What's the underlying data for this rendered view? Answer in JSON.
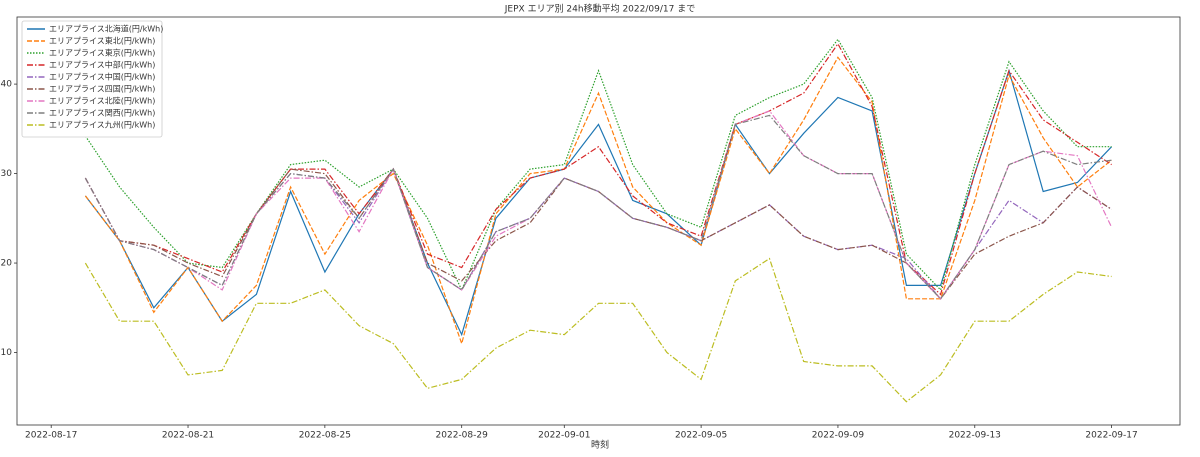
{
  "chart_data": {
    "type": "line",
    "title": "JEPX エリア別 24h移動平均 2022/09/17 まで",
    "x_label": "時刻",
    "x": [
      "2022-08-18",
      "2022-08-19",
      "2022-08-20",
      "2022-08-21",
      "2022-08-22",
      "2022-08-23",
      "2022-08-24",
      "2022-08-25",
      "2022-08-26",
      "2022-08-27",
      "2022-08-28",
      "2022-08-29",
      "2022-08-30",
      "2022-08-31",
      "2022-09-01",
      "2022-09-02",
      "2022-09-03",
      "2022-09-04",
      "2022-09-05",
      "2022-09-06",
      "2022-09-07",
      "2022-09-08",
      "2022-09-09",
      "2022-09-10",
      "2022-09-11",
      "2022-09-12",
      "2022-09-13",
      "2022-09-14",
      "2022-09-15",
      "2022-09-16",
      "2022-09-17"
    ],
    "xlim": [
      "2022-08-16",
      "2022-09-19"
    ],
    "xticks": [
      "2022-08-17",
      "2022-08-21",
      "2022-08-25",
      "2022-08-29",
      "2022-09-01",
      "2022-09-05",
      "2022-09-09",
      "2022-09-13",
      "2022-09-17"
    ],
    "ylim": [
      1.9,
      47.5
    ],
    "yticks": [
      10,
      20,
      30,
      40
    ],
    "legend": "upper left",
    "series": [
      {
        "name": "エリアプライス北海道(円/kWh)",
        "color": "#1f77b4",
        "linestyle": "solid",
        "values": [
          27.5,
          22.5,
          15,
          19.5,
          13.5,
          16.5,
          28,
          19,
          25.5,
          30.5,
          20,
          12,
          25,
          29.5,
          30.5,
          35.5,
          27,
          25.5,
          22,
          35.5,
          30,
          34.5,
          38.5,
          37,
          17.5,
          17.5,
          30,
          41.5,
          28,
          29,
          33
        ]
      },
      {
        "name": "エリアプライス東北(円/kWh)",
        "color": "#ff7f0e",
        "linestyle": "dashed",
        "values": [
          27.5,
          22.5,
          14.5,
          19.5,
          13.5,
          17.5,
          28.5,
          21,
          27,
          30,
          22,
          11,
          25.5,
          30,
          30.5,
          39,
          28.5,
          24.5,
          22,
          35,
          30,
          36,
          43,
          38,
          16,
          16,
          27,
          41,
          34,
          28.5,
          31.5
        ]
      },
      {
        "name": "エリアプライス東京(円/kWh)",
        "color": "#2ca02c",
        "linestyle": "dotted",
        "values": [
          34.2,
          28.5,
          24,
          20,
          19.5,
          25.5,
          31,
          31.5,
          28.5,
          30.5,
          25,
          17,
          26,
          30.5,
          31,
          41.5,
          31,
          25.5,
          24,
          36.5,
          38.5,
          40,
          45,
          38.5,
          21,
          17,
          31,
          42.5,
          37,
          33,
          33
        ]
      },
      {
        "name": "エリアプライス中部(円/kWh)",
        "color": "#d62728",
        "linestyle": "dashdot",
        "values": [
          29.5,
          22.5,
          22,
          20.5,
          19,
          25.5,
          30.5,
          30.5,
          25.5,
          30.5,
          21,
          19.5,
          26,
          29.5,
          30.5,
          33,
          27.5,
          24.5,
          23,
          35.5,
          37,
          39,
          44.5,
          37.5,
          20,
          16.5,
          30,
          41.5,
          36,
          33.5,
          31
        ]
      },
      {
        "name": "エリアプライス中国(円/kWh)",
        "color": "#9467bd",
        "linestyle": "dashdot",
        "values": [
          29.5,
          22.5,
          21.5,
          19.5,
          17.5,
          25.5,
          30,
          29.5,
          24.5,
          30.5,
          19.5,
          17,
          23.5,
          25,
          29.5,
          28,
          25,
          24,
          22.5,
          24.5,
          26.5,
          23,
          21.5,
          22,
          20.5,
          16,
          21.5,
          27,
          24.5,
          28.5,
          26
        ]
      },
      {
        "name": "エリアプライス四国(円/kWh)",
        "color": "#8c564b",
        "linestyle": "dashdot",
        "values": [
          29.5,
          22.5,
          22,
          20,
          18.5,
          25.5,
          30.5,
          30,
          25,
          30.5,
          20,
          18,
          22.5,
          24.5,
          29.5,
          28,
          25,
          24,
          22.5,
          24.5,
          26.5,
          23,
          21.5,
          22,
          20,
          16,
          21,
          23,
          24.5,
          28.5,
          26
        ]
      },
      {
        "name": "エリアプライス北陸(円/kWh)",
        "color": "#e377c2",
        "linestyle": "dashdot",
        "values": [
          29.5,
          22.5,
          21.5,
          19.5,
          17,
          25.5,
          29.5,
          29.5,
          23.5,
          30.5,
          19.5,
          17,
          23,
          25,
          29.5,
          28,
          25,
          24,
          22.5,
          35.5,
          37,
          32,
          30,
          30,
          20,
          16,
          21.5,
          31,
          32.5,
          32,
          24
        ]
      },
      {
        "name": "エリアプライス関西(円/kWh)",
        "color": "#7f7f7f",
        "linestyle": "dashdot",
        "values": [
          29.5,
          22.5,
          21.5,
          19.5,
          17.5,
          25.5,
          30,
          29.5,
          25,
          30.5,
          19.5,
          17,
          23.5,
          25,
          29.5,
          28,
          25,
          24,
          22.5,
          35.5,
          36.5,
          32,
          30,
          30,
          20,
          16,
          21.5,
          31,
          32.5,
          31,
          31.5
        ]
      },
      {
        "name": "エリアプライス九州(円/kWh)",
        "color": "#bcbd22",
        "linestyle": "dashdot",
        "values": [
          20,
          13.5,
          13.5,
          7.5,
          8,
          15.5,
          15.5,
          17,
          13,
          11,
          6,
          7,
          10.5,
          12.5,
          12,
          15.5,
          15.5,
          10,
          7,
          18,
          20.5,
          9,
          8.5,
          8.5,
          4.5,
          7.5,
          13.5,
          13.5,
          16.5,
          19,
          18.5
        ]
      }
    ]
  }
}
